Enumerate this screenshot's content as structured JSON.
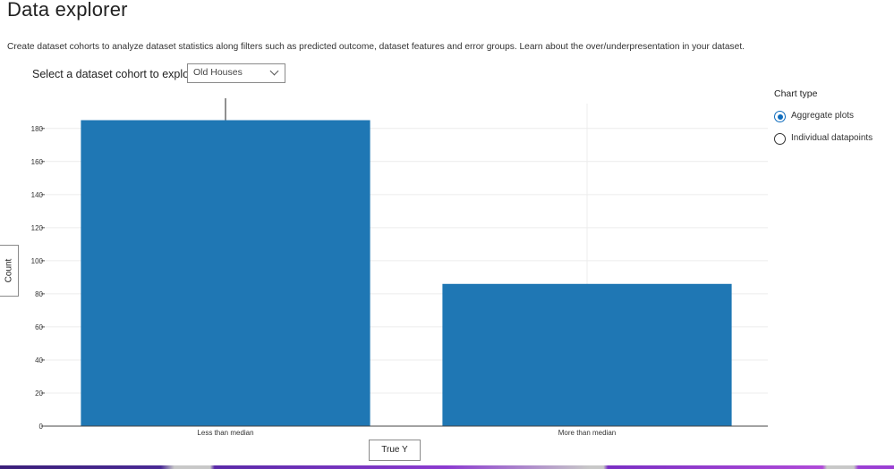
{
  "page": {
    "title": "Data explorer",
    "description": "Create dataset cohorts to analyze dataset statistics along filters such as predicted outcome, dataset features and error groups. Learn about the over/underpresentation in your dataset."
  },
  "cohort": {
    "label": "Select a dataset cohort to explore",
    "selected": "Old Houses"
  },
  "axis_buttons": {
    "y_label": "Count",
    "x_label": "True Y"
  },
  "chart_type": {
    "heading": "Chart type",
    "options": [
      {
        "label": "Aggregate plots",
        "selected": true
      },
      {
        "label": "Individual datapoints",
        "selected": false
      }
    ]
  },
  "colors": {
    "bar": "#1f77b4",
    "accent": "#0f6cbd"
  },
  "chart_data": {
    "type": "bar",
    "categories": [
      "Less than median",
      "More than median"
    ],
    "values": [
      185,
      86
    ],
    "xlabel": "True Y",
    "ylabel": "Count",
    "ylim": [
      0,
      195
    ],
    "yticks": [
      0,
      20,
      40,
      60,
      80,
      100,
      120,
      140,
      160,
      180
    ],
    "grid": true
  }
}
